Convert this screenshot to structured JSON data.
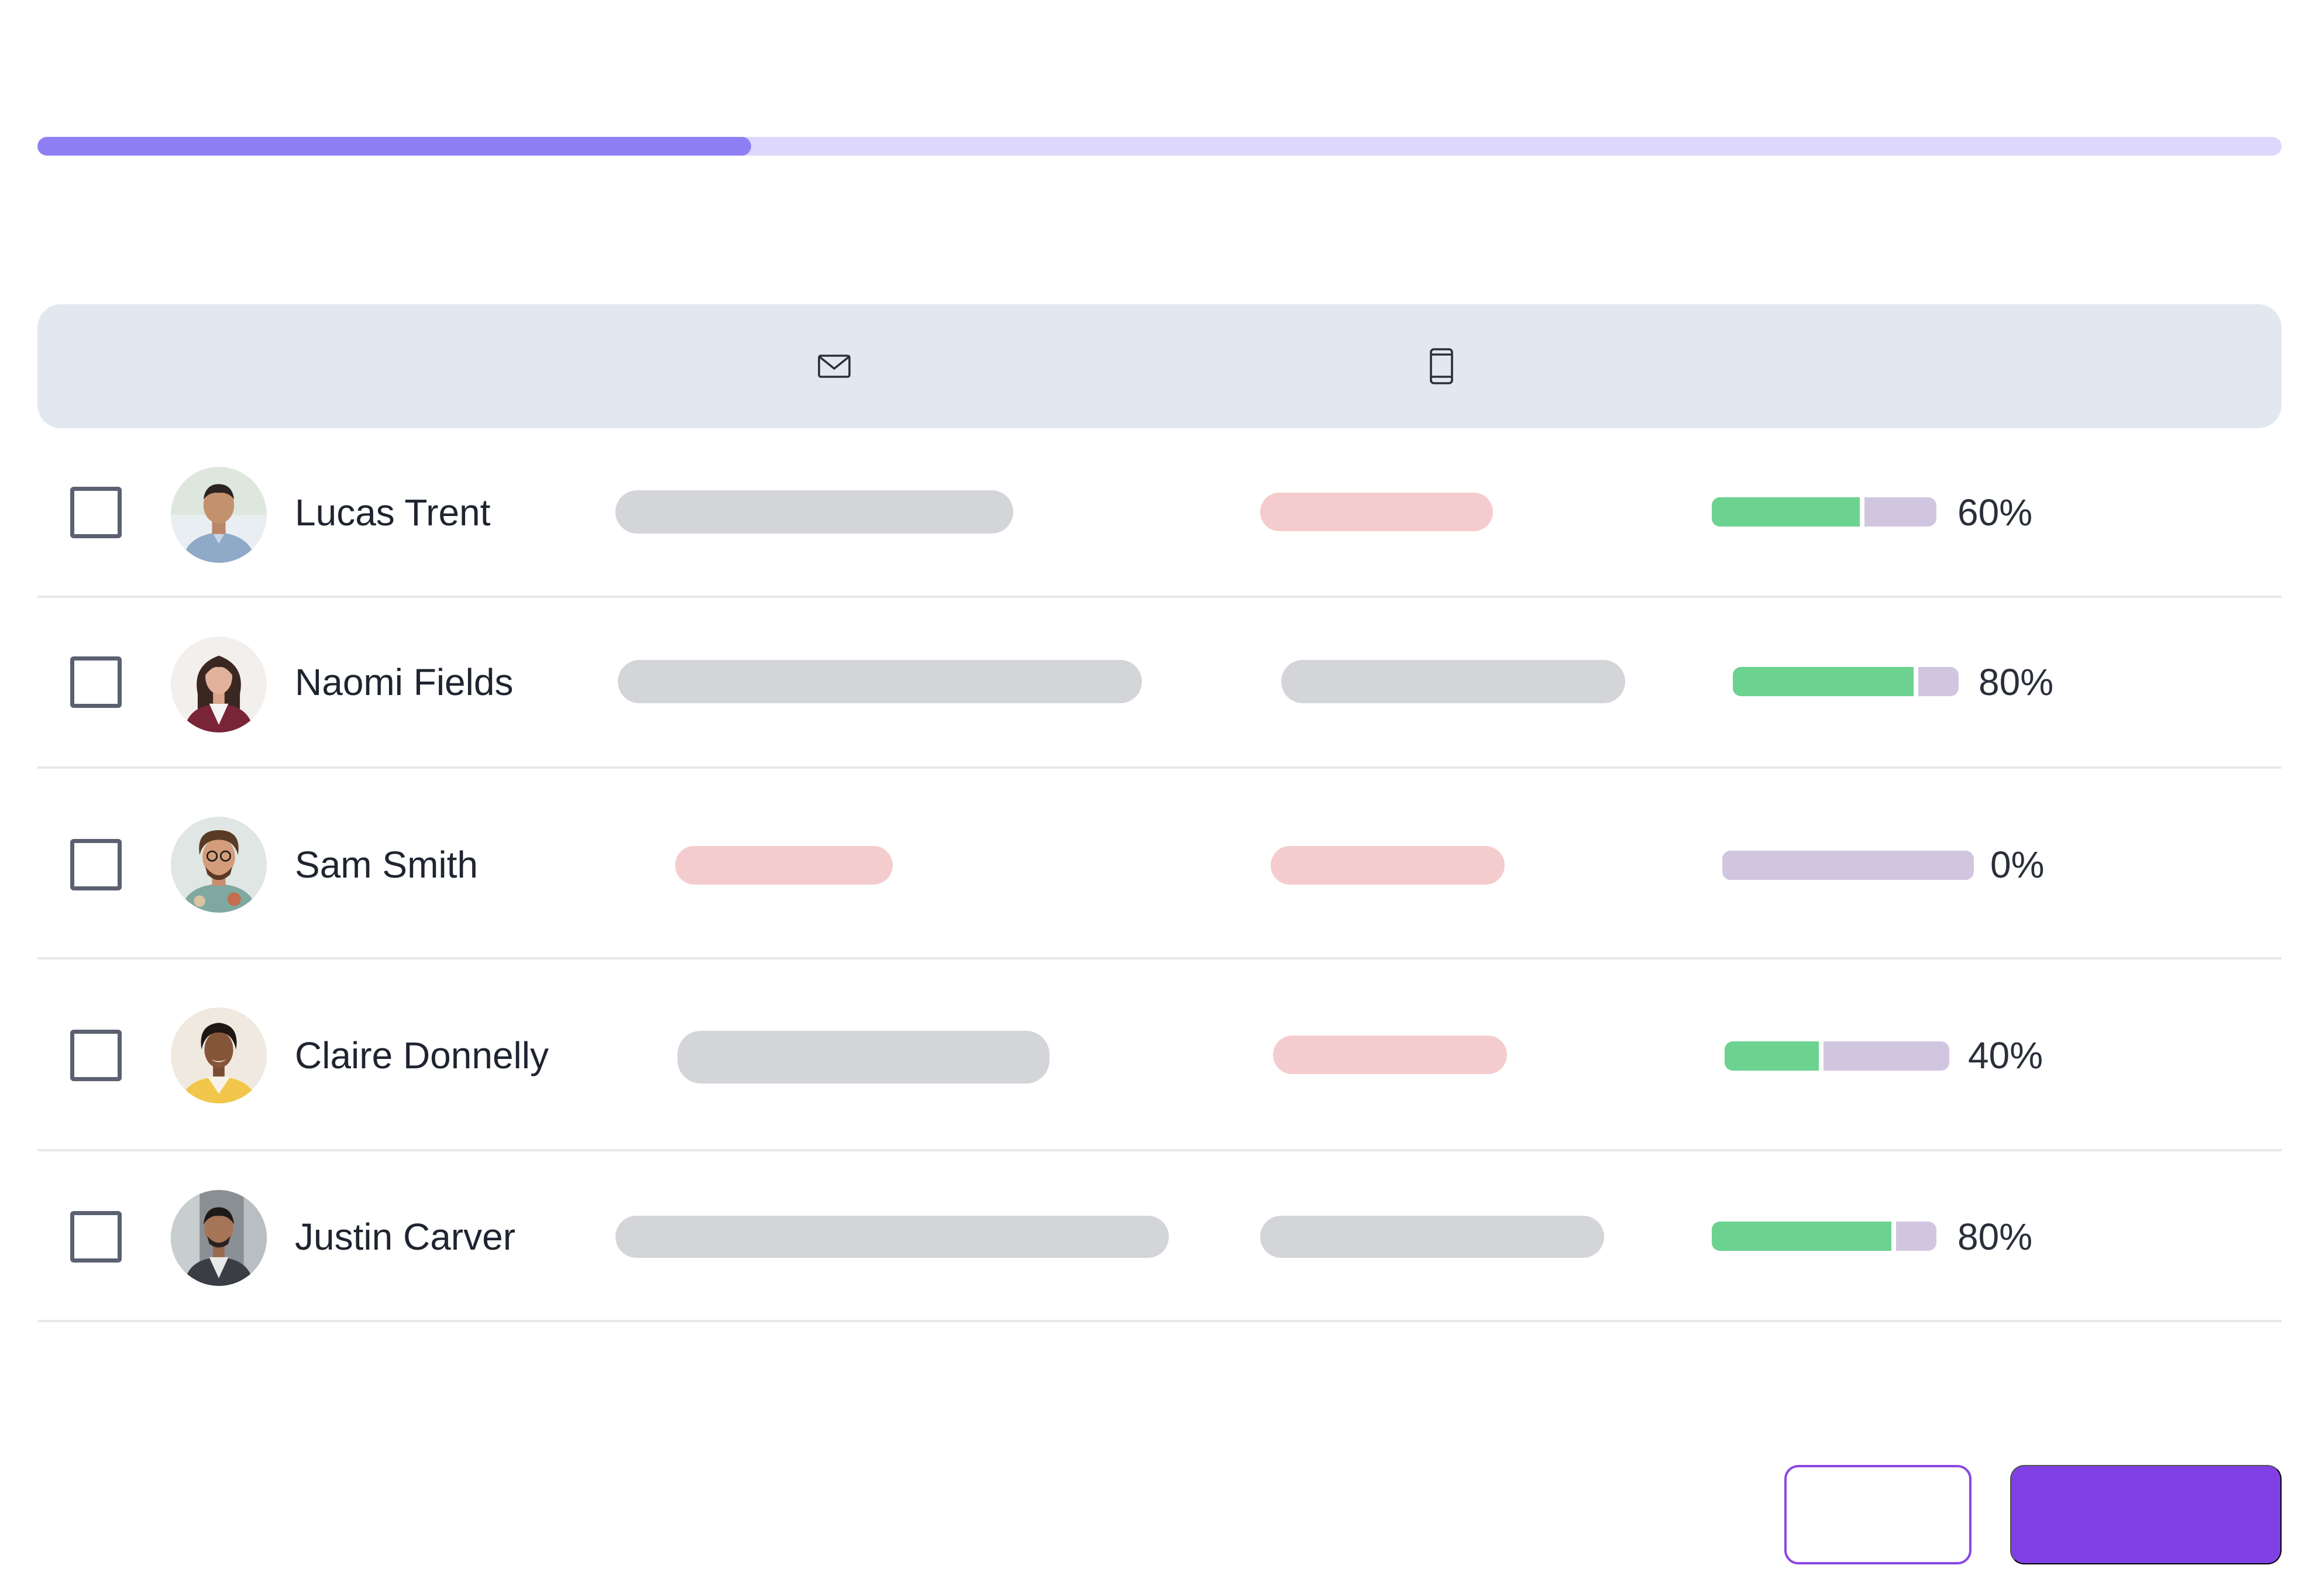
{
  "progress": {
    "fraction": 0.318,
    "fill_color": "#8f7ff5",
    "track_color": "#ddd7fb"
  },
  "table": {
    "header_icons": [
      "envelope-icon",
      "mobile-phone-icon"
    ],
    "rows": [
      {
        "name": "Lucas Trent",
        "score_label": "60%",
        "score": 0.6,
        "email_placeholder": "gray",
        "phone_placeholder": "pink"
      },
      {
        "name": "Naomi Fields",
        "score_label": "80%",
        "score": 0.8,
        "email_placeholder": "gray",
        "phone_placeholder": "gray"
      },
      {
        "name": "Sam Smith",
        "score_label": "0%",
        "score": 0.0,
        "email_placeholder": "pink",
        "phone_placeholder": "pink"
      },
      {
        "name": "Claire Donnelly",
        "score_label": "40%",
        "score": 0.4,
        "email_placeholder": "gray",
        "phone_placeholder": "pink"
      },
      {
        "name": "Justin Carver",
        "score_label": "80%",
        "score": 0.8,
        "email_placeholder": "gray",
        "phone_placeholder": "gray"
      }
    ]
  },
  "footer": {
    "secondary_button": "",
    "primary_button": ""
  },
  "colors": {
    "accent": "#8040e4",
    "header_bg": "#e2e8f0",
    "placeholder_gray": "#d4d5d9",
    "placeholder_pink": "#f5cccd",
    "score_fill": "#6bd38f",
    "score_track": "#d1c6e0"
  }
}
